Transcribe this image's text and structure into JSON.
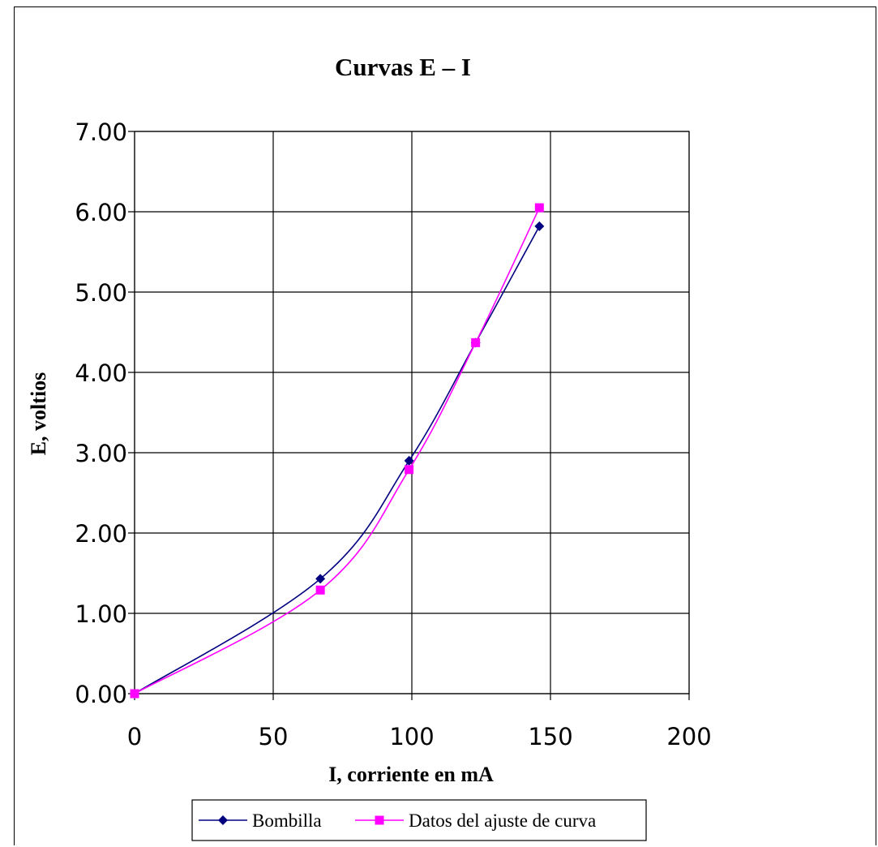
{
  "chart_data": {
    "type": "line",
    "title": "Curvas E – I",
    "xlabel": "I, corriente en mA",
    "ylabel": "E, voltios",
    "xlim": [
      0,
      200
    ],
    "ylim": [
      0,
      7
    ],
    "x_ticks": [
      "0",
      "50",
      "100",
      "150",
      "200"
    ],
    "y_ticks": [
      "0.00",
      "1.00",
      "2.00",
      "3.00",
      "4.00",
      "5.00",
      "6.00",
      "7.00"
    ],
    "grid": true,
    "legend_position": "bottom",
    "series": [
      {
        "name": "Bombilla",
        "color": "#000080",
        "marker": "diamond",
        "x": [
          0,
          67,
          99,
          123,
          146
        ],
        "y": [
          0,
          1.43,
          2.9,
          4.37,
          5.82
        ]
      },
      {
        "name": "Datos del ajuste de curva",
        "color": "#ff00ff",
        "marker": "square",
        "x": [
          0,
          67,
          99,
          123,
          146
        ],
        "y": [
          0,
          1.29,
          2.79,
          4.37,
          6.05
        ]
      }
    ]
  }
}
